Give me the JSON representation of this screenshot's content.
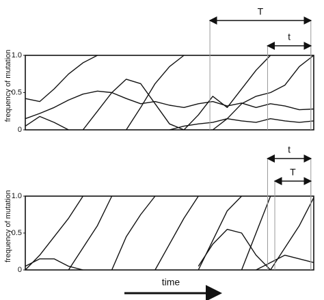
{
  "chart_data": [
    {
      "type": "line",
      "ylabel": "frequency of mutation",
      "color": "#111111",
      "x": [
        0,
        5,
        10,
        15,
        20,
        25,
        30,
        35,
        40,
        45,
        50,
        55,
        60,
        65,
        70,
        75,
        80,
        85,
        90,
        95,
        100
      ],
      "xlim": [
        0,
        100
      ],
      "ylim": [
        0,
        1
      ],
      "yticks": [
        0,
        0.5,
        {
          "value": 1,
          "label": "1.0"
        }
      ],
      "series": [
        {
          "values": [
            0.42,
            0.38,
            0.55,
            0.75,
            0.9,
            1.0,
            null,
            null,
            null,
            null,
            null,
            null,
            null,
            null,
            null,
            null,
            null,
            null,
            null,
            null,
            null
          ]
        },
        {
          "values": [
            null,
            null,
            null,
            null,
            0,
            0.25,
            0.5,
            0.68,
            0.62,
            0.35,
            0.08,
            0,
            null,
            null,
            null,
            null,
            null,
            null,
            null,
            null,
            null
          ]
        },
        {
          "values": [
            null,
            null,
            null,
            null,
            null,
            null,
            null,
            0,
            0.3,
            0.62,
            0.85,
            1.0,
            null,
            null,
            null,
            null,
            null,
            null,
            null,
            null,
            null
          ]
        },
        {
          "values": [
            0.15,
            0.22,
            0.3,
            0.4,
            0.48,
            0.52,
            0.5,
            0.42,
            0.35,
            0.38,
            0.33,
            0.3,
            0.35,
            0.38,
            0.32,
            0.36,
            0.3,
            0.35,
            0.32,
            0.27,
            0.28
          ]
        },
        {
          "values": [
            null,
            null,
            null,
            null,
            null,
            null,
            null,
            null,
            null,
            null,
            null,
            0,
            0.2,
            0.45,
            0.3,
            0.55,
            0.8,
            1.0,
            null,
            null,
            null
          ]
        },
        {
          "values": [
            null,
            null,
            null,
            null,
            null,
            null,
            null,
            null,
            null,
            null,
            null,
            null,
            null,
            0,
            0.15,
            0.35,
            0.45,
            0.5,
            0.6,
            0.85,
            1.0
          ]
        },
        {
          "values": [
            0.05,
            0.18,
            0.1,
            0,
            null,
            null,
            null,
            null,
            null,
            null,
            null,
            null,
            null,
            null,
            null,
            null,
            null,
            null,
            null,
            null,
            null
          ]
        },
        {
          "values": [
            null,
            null,
            null,
            null,
            null,
            null,
            null,
            null,
            null,
            null,
            0,
            0.05,
            0.08,
            0.1,
            0.15,
            0.12,
            0.1,
            0.15,
            0.12,
            0.1,
            0.12
          ]
        }
      ],
      "annotations": [
        {
          "text": "T",
          "x": [
            64,
            99
          ]
        },
        {
          "text": "t",
          "x": [
            84,
            99
          ]
        }
      ]
    },
    {
      "type": "line",
      "ylabel": "frequency of mutation",
      "xlabel": "time",
      "color": "#111111",
      "x": [
        0,
        5,
        10,
        15,
        20,
        25,
        30,
        35,
        40,
        45,
        50,
        55,
        60,
        65,
        70,
        75,
        80,
        85,
        90,
        95,
        100
      ],
      "xlim": [
        0,
        100
      ],
      "ylim": [
        0,
        1
      ],
      "yticks": [
        0,
        0.5,
        {
          "value": 1,
          "label": "1.0"
        }
      ],
      "series": [
        {
          "values": [
            0,
            0.2,
            0.45,
            0.7,
            1.0,
            null,
            null,
            null,
            null,
            null,
            null,
            null,
            null,
            null,
            null,
            null,
            null,
            null,
            null,
            null,
            null
          ]
        },
        {
          "values": [
            null,
            null,
            null,
            0,
            0.3,
            0.6,
            1.0,
            null,
            null,
            null,
            null,
            null,
            null,
            null,
            null,
            null,
            null,
            null,
            null,
            null,
            null
          ]
        },
        {
          "values": [
            null,
            null,
            null,
            null,
            null,
            null,
            0,
            0.45,
            0.75,
            1.0,
            null,
            null,
            null,
            null,
            null,
            null,
            null,
            null,
            null,
            null,
            null
          ]
        },
        {
          "values": [
            null,
            null,
            null,
            null,
            null,
            null,
            null,
            null,
            null,
            0,
            0.35,
            0.7,
            1.0,
            null,
            null,
            null,
            null,
            null,
            null,
            null,
            null
          ]
        },
        {
          "values": [
            null,
            null,
            null,
            null,
            null,
            null,
            null,
            null,
            null,
            null,
            null,
            null,
            0,
            0.4,
            0.8,
            1.0,
            null,
            null,
            null,
            null,
            null
          ]
        },
        {
          "values": [
            null,
            null,
            null,
            null,
            null,
            null,
            null,
            null,
            null,
            null,
            null,
            null,
            null,
            null,
            null,
            0,
            0.5,
            1.0,
            null,
            null,
            null
          ]
        },
        {
          "values": [
            null,
            null,
            null,
            null,
            null,
            null,
            null,
            null,
            null,
            null,
            null,
            null,
            null,
            null,
            null,
            null,
            null,
            0,
            0.3,
            0.6,
            0.98
          ]
        },
        {
          "values": [
            null,
            null,
            null,
            null,
            null,
            null,
            null,
            null,
            null,
            null,
            null,
            null,
            0.05,
            0.35,
            0.55,
            0.5,
            0.2,
            0,
            null,
            null,
            null
          ]
        },
        {
          "values": [
            0.05,
            0.15,
            0.15,
            0.05,
            0,
            null,
            null,
            null,
            null,
            null,
            null,
            null,
            null,
            null,
            null,
            null,
            null,
            null,
            null,
            null,
            null
          ]
        },
        {
          "values": [
            null,
            null,
            null,
            null,
            null,
            null,
            null,
            null,
            null,
            null,
            null,
            null,
            null,
            null,
            null,
            null,
            0,
            0.1,
            0.2,
            0.15,
            0.1
          ]
        }
      ],
      "annotations": [
        {
          "text": "t",
          "x": [
            84,
            99
          ]
        },
        {
          "text": "T",
          "x": [
            86.5,
            99
          ]
        }
      ]
    }
  ]
}
